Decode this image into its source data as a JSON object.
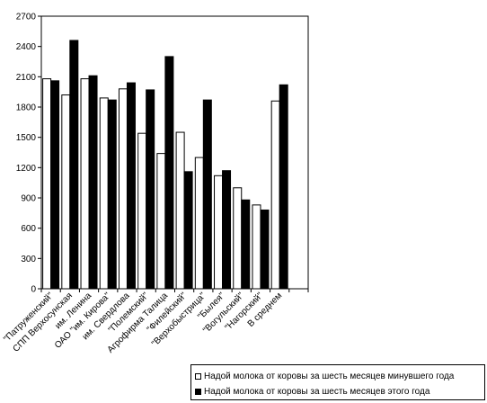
{
  "chart_data": {
    "type": "bar",
    "title": "",
    "xlabel": "",
    "ylabel": "",
    "ylim": [
      0,
      2700
    ],
    "yticks": [
      0,
      300,
      600,
      900,
      1200,
      1500,
      1800,
      2100,
      2400,
      2700
    ],
    "grid": false,
    "legend_position": "bottom-right",
    "categories": [
      "\"Патруженский\"",
      "СПП Верхосунская",
      "им. Ленина",
      "ОАО \"им. Кирова\"",
      "им. Свердлова",
      "\"Полемский\"",
      "Агрофирма Талица",
      "\"Филейский\"",
      "\"Верхобыстрица\"",
      "\"Былея\"",
      "\"Вогульский\"",
      "\"Нагорский\"",
      "В среднем"
    ],
    "series": [
      {
        "name": "Надой молока от коровы за шесть месяцев минувшего года",
        "color": "#ffffff",
        "values": [
          2080,
          1920,
          2080,
          1890,
          1980,
          1540,
          1340,
          1550,
          1300,
          1120,
          1000,
          830,
          1860
        ]
      },
      {
        "name": "Надой молока от коровы за шесть месяцев этого года",
        "color": "#000000",
        "values": [
          2060,
          2460,
          2110,
          1870,
          2040,
          1970,
          2300,
          1160,
          1870,
          1170,
          880,
          780,
          2020
        ]
      }
    ]
  }
}
